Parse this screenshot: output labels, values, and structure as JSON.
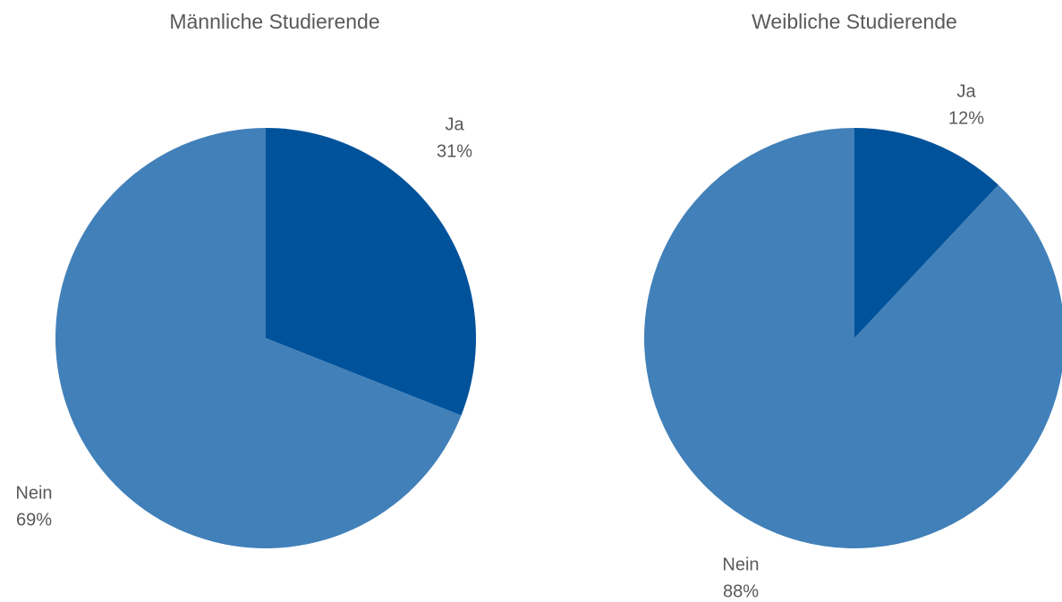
{
  "chart_data": [
    {
      "type": "pie",
      "title": "Männliche Studierende",
      "categories": [
        "Ja",
        "Nein"
      ],
      "values": [
        31,
        69
      ],
      "value_labels": [
        "31%",
        "69%"
      ],
      "colors": [
        "#00529b",
        "#4180b9"
      ]
    },
    {
      "type": "pie",
      "title": "Weibliche Studierende",
      "categories": [
        "Ja",
        "Nein"
      ],
      "values": [
        12,
        88
      ],
      "value_labels": [
        "12%",
        "88%"
      ],
      "colors": [
        "#00529b",
        "#4180b9"
      ]
    }
  ]
}
